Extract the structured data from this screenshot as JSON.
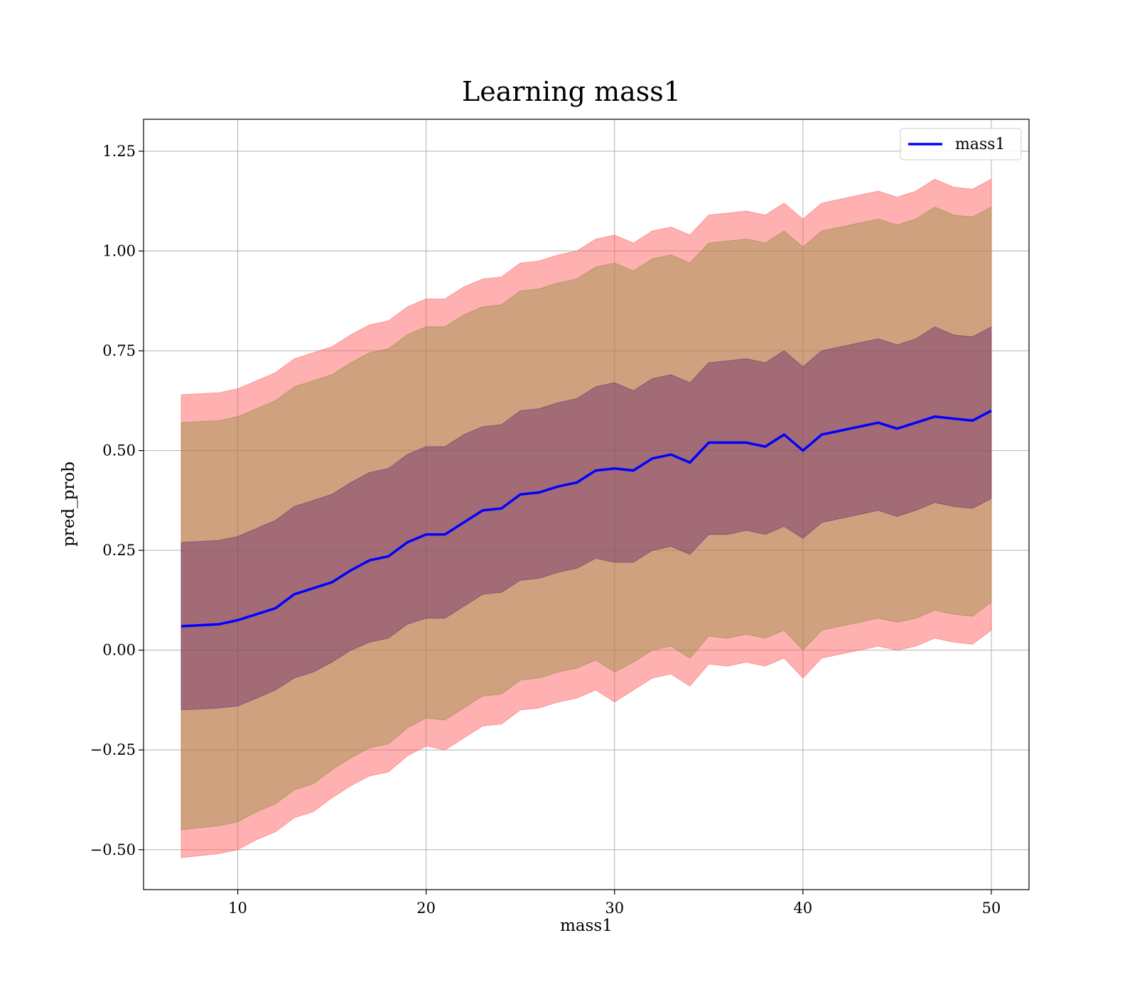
{
  "chart_data": {
    "type": "line",
    "title": "Learning mass1",
    "xlabel": "mass1",
    "ylabel": "pred_prob",
    "xlim": [
      5,
      52
    ],
    "ylim": [
      -0.6,
      1.33
    ],
    "xticks": [
      10,
      20,
      30,
      40,
      50
    ],
    "xtick_labels": [
      "10",
      "20",
      "30",
      "40",
      "50"
    ],
    "yticks": [
      -0.5,
      -0.25,
      0.0,
      0.25,
      0.5,
      0.75,
      1.0,
      1.25
    ],
    "ytick_labels": [
      "−0.50",
      "−0.25",
      "0.00",
      "0.25",
      "0.50",
      "0.75",
      "1.00",
      "1.25"
    ],
    "grid": true,
    "legend": {
      "position": "top-right",
      "entries": [
        "mass1"
      ]
    },
    "x": [
      7,
      9,
      10,
      11,
      12,
      13,
      14,
      15,
      16,
      17,
      18,
      19,
      20,
      21,
      22,
      23,
      24,
      25,
      26,
      27,
      28,
      29,
      30,
      31,
      32,
      33,
      34,
      35,
      36,
      37,
      38,
      39,
      40,
      41,
      42,
      43,
      44,
      45,
      46,
      47,
      48,
      49,
      50
    ],
    "series": [
      {
        "name": "mass1",
        "color": "#0000ff",
        "values": [
          0.06,
          0.065,
          0.075,
          0.09,
          0.105,
          0.14,
          0.155,
          0.17,
          0.2,
          0.225,
          0.235,
          0.27,
          0.29,
          0.29,
          0.32,
          0.35,
          0.355,
          0.39,
          0.395,
          0.41,
          0.42,
          0.45,
          0.455,
          0.45,
          0.48,
          0.49,
          0.47,
          0.52,
          0.52,
          0.52,
          0.51,
          0.54,
          0.5,
          0.54,
          0.55,
          0.56,
          0.57,
          0.555,
          0.57,
          0.585,
          0.58,
          0.575,
          0.6
        ]
      }
    ],
    "bands": [
      {
        "color": "#ff5a5a",
        "opacity": 0.48,
        "lower": [
          -0.52,
          -0.51,
          -0.5,
          -0.475,
          -0.455,
          -0.42,
          -0.405,
          -0.37,
          -0.34,
          -0.315,
          -0.305,
          -0.265,
          -0.24,
          -0.25,
          -0.22,
          -0.19,
          -0.185,
          -0.15,
          -0.145,
          -0.13,
          -0.12,
          -0.1,
          -0.13,
          -0.1,
          -0.07,
          -0.06,
          -0.09,
          -0.035,
          -0.04,
          -0.03,
          -0.04,
          -0.02,
          -0.07,
          -0.02,
          -0.01,
          0.0,
          0.01,
          0.0,
          0.01,
          0.03,
          0.02,
          0.015,
          0.05
        ],
        "upper": [
          0.64,
          0.645,
          0.655,
          0.675,
          0.695,
          0.73,
          0.745,
          0.76,
          0.79,
          0.815,
          0.825,
          0.86,
          0.88,
          0.88,
          0.91,
          0.93,
          0.935,
          0.97,
          0.975,
          0.99,
          1.0,
          1.03,
          1.04,
          1.02,
          1.05,
          1.06,
          1.04,
          1.09,
          1.095,
          1.1,
          1.09,
          1.12,
          1.08,
          1.12,
          1.13,
          1.14,
          1.15,
          1.135,
          1.15,
          1.18,
          1.16,
          1.155,
          1.18
        ]
      },
      {
        "color": "#8c8c3c",
        "opacity": 0.42,
        "lower": [
          -0.45,
          -0.44,
          -0.43,
          -0.405,
          -0.385,
          -0.35,
          -0.335,
          -0.3,
          -0.27,
          -0.245,
          -0.235,
          -0.195,
          -0.17,
          -0.175,
          -0.145,
          -0.115,
          -0.11,
          -0.075,
          -0.07,
          -0.055,
          -0.045,
          -0.025,
          -0.055,
          -0.03,
          0.0,
          0.01,
          -0.02,
          0.035,
          0.03,
          0.04,
          0.03,
          0.05,
          0.0,
          0.05,
          0.06,
          0.07,
          0.08,
          0.07,
          0.08,
          0.1,
          0.09,
          0.085,
          0.12
        ],
        "upper": [
          0.57,
          0.575,
          0.585,
          0.605,
          0.625,
          0.66,
          0.675,
          0.69,
          0.72,
          0.745,
          0.755,
          0.79,
          0.81,
          0.81,
          0.84,
          0.86,
          0.865,
          0.9,
          0.905,
          0.92,
          0.93,
          0.96,
          0.97,
          0.95,
          0.98,
          0.99,
          0.97,
          1.02,
          1.025,
          1.03,
          1.02,
          1.05,
          1.01,
          1.05,
          1.06,
          1.07,
          1.08,
          1.065,
          1.08,
          1.11,
          1.09,
          1.085,
          1.11
        ]
      },
      {
        "color": "#6a2a6a",
        "opacity": 0.45,
        "lower": [
          -0.15,
          -0.145,
          -0.14,
          -0.12,
          -0.1,
          -0.07,
          -0.055,
          -0.03,
          0.0,
          0.02,
          0.03,
          0.065,
          0.08,
          0.08,
          0.11,
          0.14,
          0.145,
          0.175,
          0.18,
          0.195,
          0.205,
          0.23,
          0.22,
          0.22,
          0.25,
          0.26,
          0.24,
          0.29,
          0.29,
          0.3,
          0.29,
          0.31,
          0.28,
          0.32,
          0.33,
          0.34,
          0.35,
          0.335,
          0.35,
          0.37,
          0.36,
          0.355,
          0.38
        ],
        "upper": [
          0.27,
          0.275,
          0.285,
          0.305,
          0.325,
          0.36,
          0.375,
          0.39,
          0.42,
          0.445,
          0.455,
          0.49,
          0.51,
          0.51,
          0.54,
          0.56,
          0.565,
          0.6,
          0.605,
          0.62,
          0.63,
          0.66,
          0.67,
          0.65,
          0.68,
          0.69,
          0.67,
          0.72,
          0.725,
          0.73,
          0.72,
          0.75,
          0.71,
          0.75,
          0.76,
          0.77,
          0.78,
          0.765,
          0.78,
          0.81,
          0.79,
          0.785,
          0.81
        ]
      }
    ]
  }
}
